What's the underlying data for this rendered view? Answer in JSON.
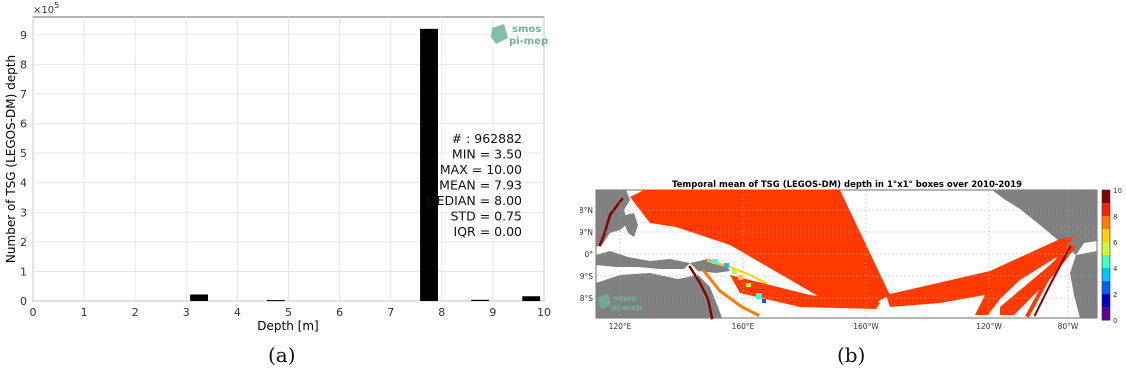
{
  "chart_data": [
    {
      "type": "bar",
      "xlabel": "Depth [m]",
      "ylabel": "Number of TSG (LEGOS-DM) depth",
      "y_multiplier": "×10",
      "y_exponent": "5",
      "xlim": [
        0,
        10
      ],
      "ylim": [
        0,
        9.6
      ],
      "x_ticks": [
        "0",
        "1",
        "2",
        "3",
        "4",
        "5",
        "6",
        "7",
        "8",
        "9",
        "10"
      ],
      "y_ticks": [
        "0",
        "1",
        "2",
        "3",
        "4",
        "5",
        "6",
        "7",
        "8",
        "9"
      ],
      "grid": true,
      "bin_width": 0.35,
      "bars": [
        {
          "x": 3.25,
          "value": 0.22
        },
        {
          "x": 4.75,
          "value": 0.03
        },
        {
          "x": 7.75,
          "value": 9.2
        },
        {
          "x": 8.75,
          "value": 0.04
        },
        {
          "x": 9.75,
          "value": 0.16
        }
      ],
      "stats": [
        "# : 962882",
        "MIN = 3.50",
        "MAX =  10.00",
        "MEAN = 7.93",
        "MEDIAN = 8.00",
        "STD = 0.75",
        "IQR = 0.00"
      ],
      "bar_color": "#000000"
    },
    {
      "type": "heatmap",
      "title": "Temporal mean of TSG (LEGOS-DM) depth in 1°x1° boxes over 2010-2019",
      "x_ticks": [
        "120°E",
        "160°E",
        "160°W",
        "120°W",
        "80°W"
      ],
      "y_ticks": [
        "18°N",
        "9°N",
        "0°",
        "9°S",
        "18°S"
      ],
      "colorbar_ticks": [
        "10",
        "8",
        "6",
        "4",
        "2",
        "0"
      ],
      "colorbar_range": [
        0,
        10
      ],
      "colormap": [
        "#800000",
        "#ff2000",
        "#ff8000",
        "#ffd000",
        "#c8ff30",
        "#40ffc0",
        "#00c8ff",
        "#0060ff",
        "#0000d0",
        "#6000a0"
      ],
      "land_color": "#808080",
      "dominant_value": 8
    }
  ],
  "logo": {
    "line1": "smos",
    "line2": "pi-mep",
    "color": "#6fb394"
  },
  "captions": {
    "a": "(a)",
    "b": "(b)"
  }
}
